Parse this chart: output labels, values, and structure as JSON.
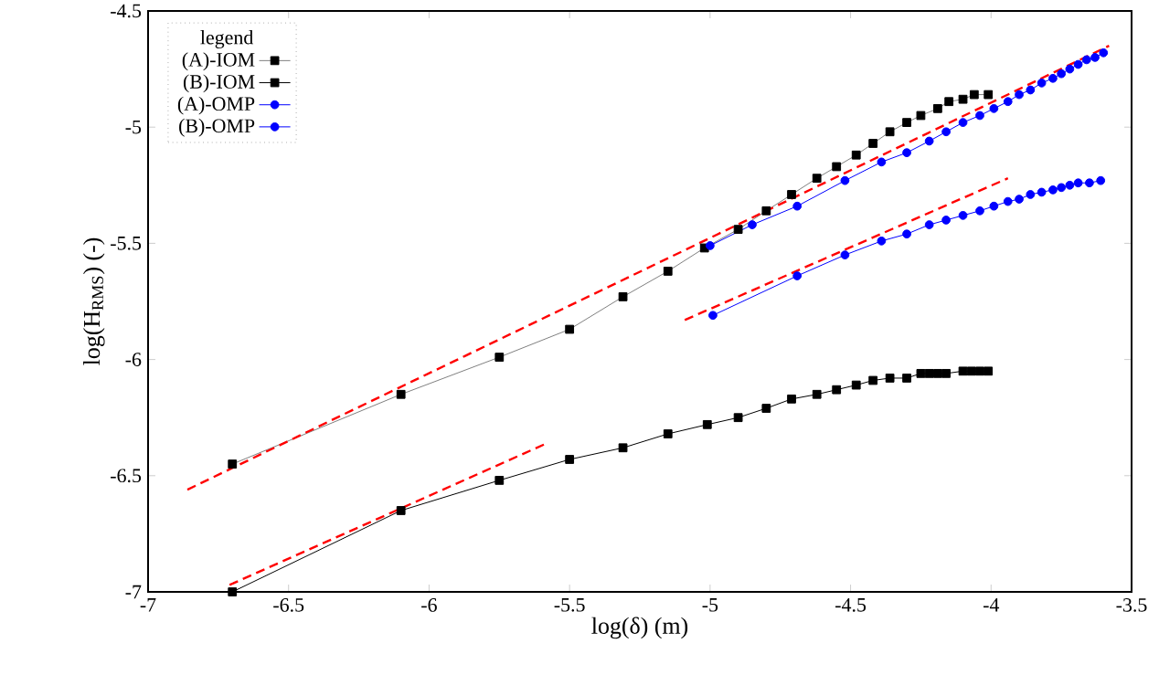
{
  "chart_data": {
    "type": "line",
    "xlabel": "log(δ) (m)",
    "ylabel": "log(H$_{RMS}$) (-)",
    "legend_title": "legend",
    "legend": "top left",
    "grid": false,
    "xlim": [
      -7,
      -3.5
    ],
    "ylim": [
      -7,
      -4.5
    ],
    "xticks": [
      -7,
      -6.5,
      -6,
      -5.5,
      -5,
      -4.5,
      -4,
      -3.5
    ],
    "yticks": [
      -7,
      -6.5,
      -6,
      -5.5,
      -5,
      -4.5
    ],
    "series": [
      {
        "name": "(A)-IOM",
        "color": "#808080",
        "marker": "square",
        "x": [
          -6.7,
          -6.1,
          -5.75,
          -5.5,
          -5.31,
          -5.15,
          -5.02,
          -4.9,
          -4.8,
          -4.71,
          -4.62,
          -4.55,
          -4.48,
          -4.42,
          -4.36,
          -4.3,
          -4.25,
          -4.19,
          -4.15,
          -4.1,
          -4.06,
          -4.01
        ],
        "values": [
          -6.45,
          -6.15,
          -5.99,
          -5.87,
          -5.73,
          -5.62,
          -5.52,
          -5.44,
          -5.36,
          -5.29,
          -5.22,
          -5.17,
          -5.12,
          -5.07,
          -5.02,
          -4.98,
          -4.95,
          -4.92,
          -4.89,
          -4.88,
          -4.86,
          -4.86
        ]
      },
      {
        "name": "(B)-IOM",
        "color": "#000000",
        "marker": "square",
        "x": [
          -6.7,
          -6.1,
          -5.75,
          -5.5,
          -5.31,
          -5.15,
          -5.01,
          -4.9,
          -4.8,
          -4.71,
          -4.62,
          -4.55,
          -4.48,
          -4.42,
          -4.36,
          -4.3,
          -4.25,
          -4.22,
          -4.19,
          -4.16,
          -4.1,
          -4.07,
          -4.04,
          -4.01
        ],
        "values": [
          -7.0,
          -6.65,
          -6.52,
          -6.43,
          -6.38,
          -6.32,
          -6.28,
          -6.25,
          -6.21,
          -6.17,
          -6.15,
          -6.13,
          -6.11,
          -6.09,
          -6.08,
          -6.08,
          -6.06,
          -6.06,
          -6.06,
          -6.06,
          -6.05,
          -6.05,
          -6.05,
          -6.05
        ]
      },
      {
        "name": "(A)-OMP",
        "color": "#0000ff",
        "marker": "circle",
        "x": [
          -5.0,
          -4.85,
          -4.69,
          -4.52,
          -4.39,
          -4.3,
          -4.22,
          -4.16,
          -4.1,
          -4.04,
          -3.99,
          -3.94,
          -3.9,
          -3.86,
          -3.82,
          -3.78,
          -3.75,
          -3.72,
          -3.69,
          -3.66,
          -3.63,
          -3.6
        ],
        "values": [
          -5.51,
          -5.42,
          -5.34,
          -5.23,
          -5.15,
          -5.11,
          -5.06,
          -5.02,
          -4.98,
          -4.95,
          -4.92,
          -4.89,
          -4.86,
          -4.84,
          -4.81,
          -4.79,
          -4.77,
          -4.75,
          -4.73,
          -4.71,
          -4.7,
          -4.68
        ]
      },
      {
        "name": "(B)-OMP",
        "color": "#0000ff",
        "marker": "circle",
        "x": [
          -4.99,
          -4.69,
          -4.52,
          -4.39,
          -4.3,
          -4.22,
          -4.16,
          -4.1,
          -4.04,
          -3.99,
          -3.94,
          -3.9,
          -3.86,
          -3.82,
          -3.78,
          -3.75,
          -3.72,
          -3.69,
          -3.65,
          -3.61
        ],
        "values": [
          -5.81,
          -5.64,
          -5.55,
          -5.49,
          -5.46,
          -5.42,
          -5.4,
          -5.38,
          -5.36,
          -5.34,
          -5.32,
          -5.31,
          -5.29,
          -5.28,
          -5.27,
          -5.26,
          -5.25,
          -5.24,
          -5.24,
          -5.23
        ]
      },
      {
        "type": "line",
        "color": "#ff0000",
        "marker": "none",
        "line_style": "dashed",
        "x": [
          -6.86,
          -3.58
        ],
        "values": [
          -6.56,
          -4.65
        ]
      },
      {
        "type": "line",
        "color": "#ff0000",
        "marker": "none",
        "line_style": "dashed",
        "x": [
          -6.71,
          -5.58
        ],
        "values": [
          -6.97,
          -6.36
        ]
      },
      {
        "type": "line",
        "color": "#ff0000",
        "marker": "none",
        "line_style": "dashed",
        "x": [
          -5.09,
          -3.94
        ],
        "values": [
          -5.83,
          -5.22
        ]
      }
    ]
  }
}
